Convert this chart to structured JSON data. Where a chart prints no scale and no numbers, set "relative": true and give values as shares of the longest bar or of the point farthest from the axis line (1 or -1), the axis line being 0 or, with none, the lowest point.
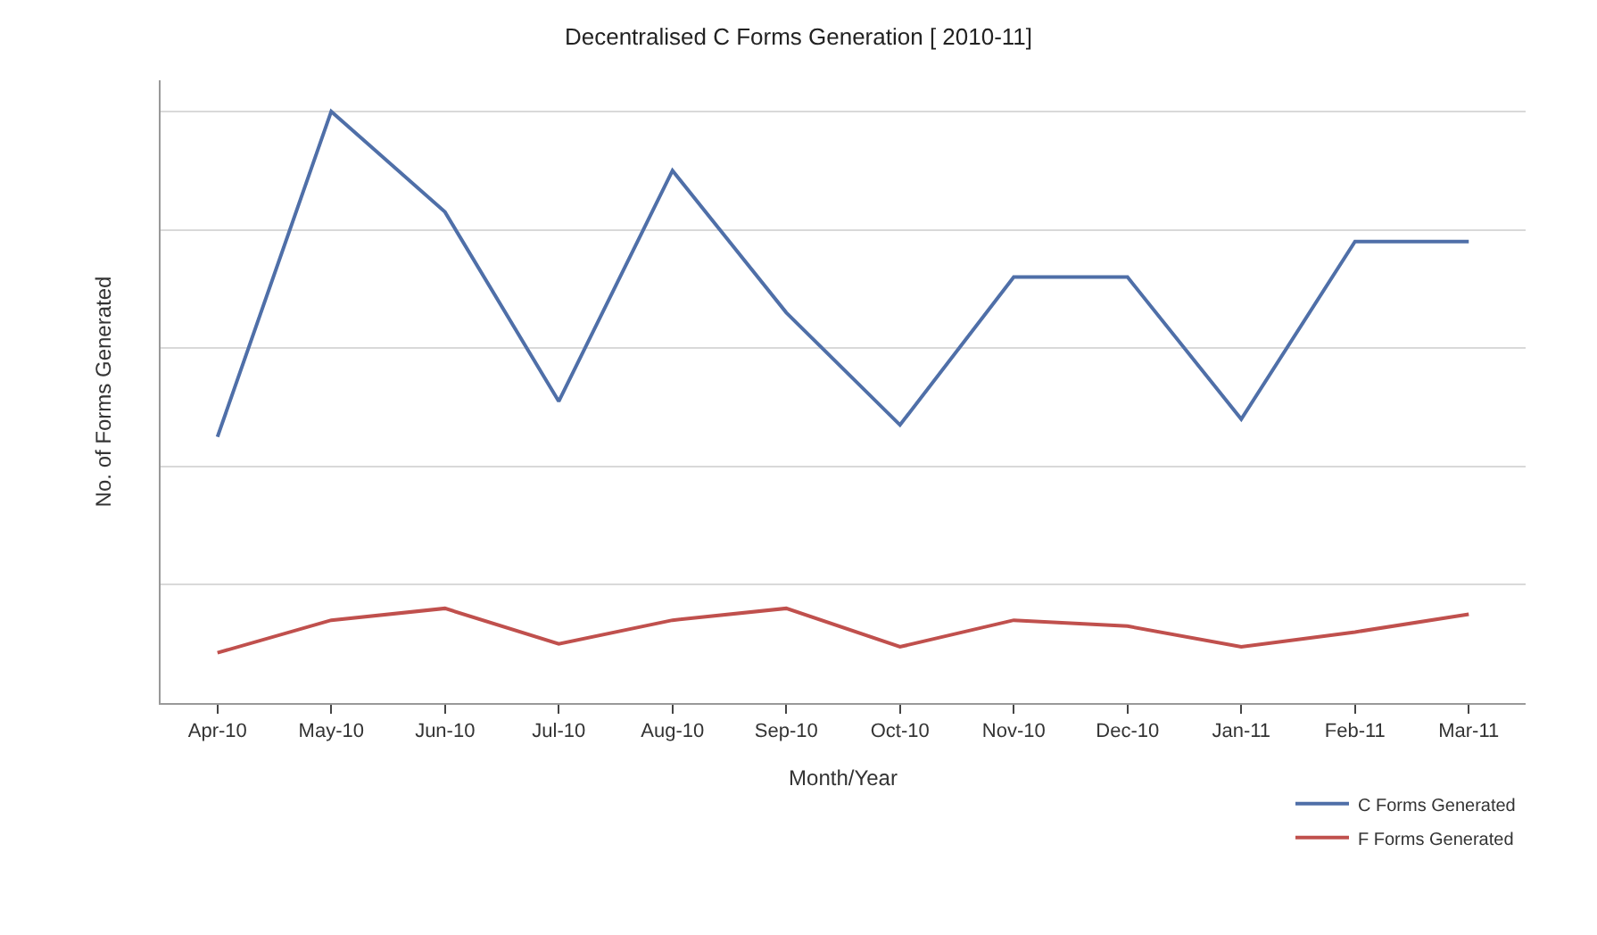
{
  "chart_data": {
    "type": "line",
    "title": "Decentralised C Forms Generation [ 2010-11]",
    "xlabel": "Month/Year",
    "ylabel": "No. of Forms Generated",
    "relative": true,
    "grid": "y",
    "legend": "bottom right",
    "marker": "none",
    "line_style": "solid",
    "categories": [
      "Apr-10",
      "May-10",
      "Jun-10",
      "Jul-10",
      "Aug-10",
      "Sep-10",
      "Oct-10",
      "Nov-10",
      "Dec-10",
      "Jan-11",
      "Feb-11",
      "Mar-11"
    ],
    "series": [
      {
        "name": "C Forms Generated",
        "color": "#4f6fa8",
        "values": [
          0.45,
          1,
          0.83,
          0.51,
          0.9,
          0.66,
          0.47,
          0.72,
          0.72,
          0.48,
          0.78,
          0.78
        ]
      },
      {
        "name": "F Forms Generated",
        "color": "#c0504d",
        "values": [
          0.085,
          0.14,
          0.16,
          0.1,
          0.14,
          0.16,
          0.095,
          0.14,
          0.13,
          0.095,
          0.12,
          0.15
        ]
      }
    ]
  }
}
